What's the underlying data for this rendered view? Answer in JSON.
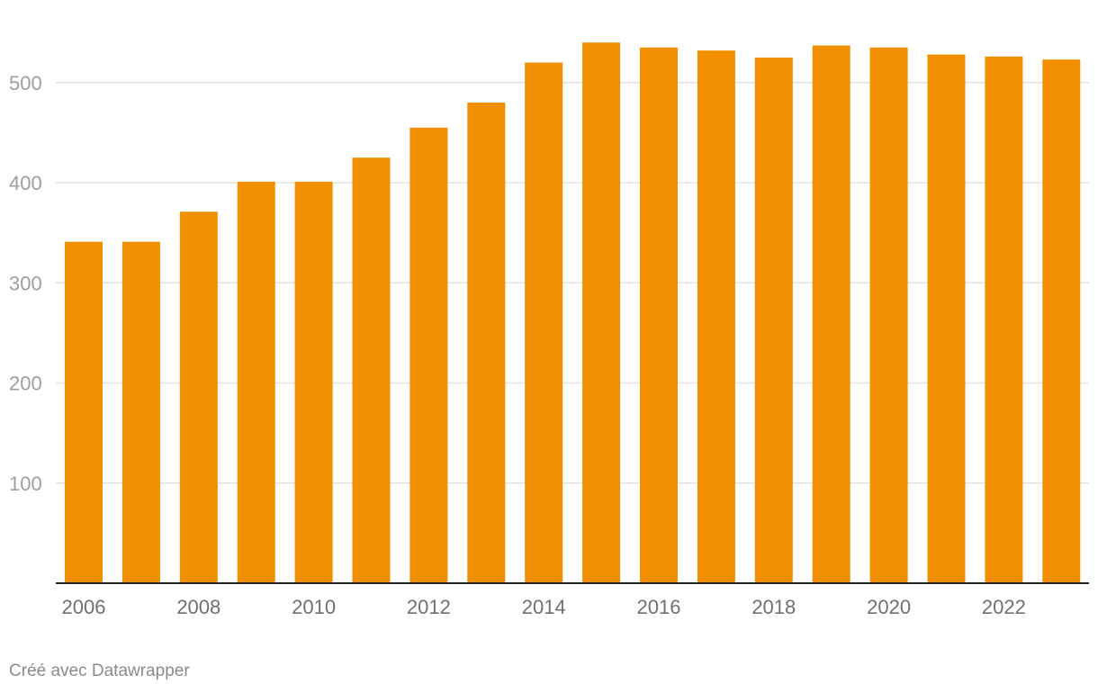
{
  "chart_data": {
    "type": "bar",
    "categories": [
      "2006",
      "2007",
      "2008",
      "2009",
      "2010",
      "2011",
      "2012",
      "2013",
      "2014",
      "2015",
      "2016",
      "2017",
      "2018",
      "2019",
      "2020",
      "2021",
      "2022",
      "2023"
    ],
    "values": [
      341,
      341,
      371,
      401,
      401,
      425,
      455,
      480,
      520,
      540,
      535,
      532,
      525,
      537,
      535,
      528,
      526,
      523
    ],
    "x_tick_labels": [
      "2006",
      "2008",
      "2010",
      "2012",
      "2014",
      "2016",
      "2018",
      "2020",
      "2022"
    ],
    "y_ticks": [
      100,
      200,
      300,
      400,
      500
    ],
    "ylim": [
      0,
      560
    ],
    "grid": true,
    "bar_color": "#f08f00",
    "title": "",
    "xlabel": "",
    "ylabel": ""
  },
  "footer": {
    "credit": "Créé avec Datawrapper"
  }
}
